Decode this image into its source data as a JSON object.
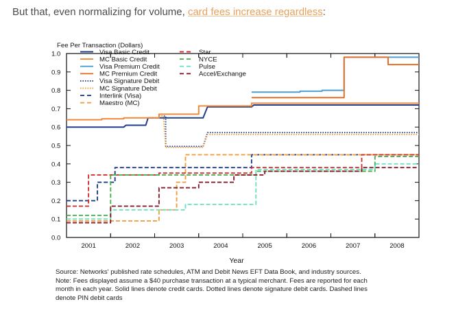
{
  "intro": {
    "prefix": "But that, even normalizing for volume, ",
    "link_text": "card fees increase regardless",
    "suffix": ":"
  },
  "colors": {
    "Visa Basic Credit": "#1f3d8a",
    "MC Basic Credit": "#f08a3a",
    "Visa Premium Credit": "#4a9fd4",
    "MC Premium Credit": "#e8702a",
    "Visa Signature Debit": "#1f3d8a",
    "MC Signature Debit": "#f0a040",
    "Interlink (Visa)": "#1f3d8a",
    "Maestro (MC)": "#f0a040",
    "Star": "#d03030",
    "NYCE": "#4caf50",
    "Pulse": "#6fe0c0",
    "Accel/Exchange": "#8b1a2a"
  },
  "chart_data": {
    "type": "line",
    "title": "Fee Per Transaction (Dollars)",
    "xlabel": "Year",
    "ylabel": "",
    "xlim": [
      2000.5,
      2008.5
    ],
    "ylim": [
      0,
      1.0
    ],
    "yticks": [
      "0.0",
      "0.1",
      "0.2",
      "0.3",
      "0.4",
      "0.5",
      "0.6",
      "0.7",
      "0.8",
      "0.9",
      "1.0"
    ],
    "xticks": [
      "2001",
      "2002",
      "2003",
      "2004",
      "2005",
      "2006",
      "2007",
      "2008"
    ],
    "grid": false,
    "legend_placement": "top-left",
    "series": [
      {
        "name": "Visa Basic Credit",
        "style": "solid",
        "points": [
          [
            2000.5,
            0.6
          ],
          [
            2001.8,
            0.6
          ],
          [
            2001.85,
            0.61
          ],
          [
            2002.3,
            0.61
          ],
          [
            2002.35,
            0.65
          ],
          [
            2003.6,
            0.65
          ],
          [
            2003.7,
            0.71
          ],
          [
            2004.7,
            0.71
          ],
          [
            2004.75,
            0.72
          ],
          [
            2008.5,
            0.72
          ]
        ]
      },
      {
        "name": "MC Basic Credit",
        "style": "solid",
        "points": [
          [
            2000.5,
            0.64
          ],
          [
            2001.3,
            0.64
          ],
          [
            2001.3,
            0.645
          ],
          [
            2001.8,
            0.645
          ],
          [
            2001.8,
            0.65
          ],
          [
            2002.6,
            0.65
          ],
          [
            2002.6,
            0.67
          ],
          [
            2003.5,
            0.67
          ],
          [
            2003.5,
            0.715
          ],
          [
            2004.7,
            0.715
          ],
          [
            2004.7,
            0.73
          ],
          [
            2006.8,
            0.73
          ],
          [
            2006.8,
            0.73
          ],
          [
            2008.5,
            0.73
          ]
        ]
      },
      {
        "name": "Visa Premium Credit",
        "style": "solid",
        "points": [
          [
            2004.7,
            0.79
          ],
          [
            2005.8,
            0.79
          ],
          [
            2005.8,
            0.795
          ],
          [
            2006.3,
            0.795
          ],
          [
            2006.3,
            0.8
          ],
          [
            2006.8,
            0.8
          ],
          [
            2006.8,
            0.98
          ],
          [
            2008.5,
            0.98
          ]
        ]
      },
      {
        "name": "MC Premium Credit",
        "style": "solid",
        "points": [
          [
            2004.7,
            0.76
          ],
          [
            2006.8,
            0.76
          ],
          [
            2006.8,
            0.98
          ],
          [
            2007.8,
            0.98
          ],
          [
            2007.8,
            0.94
          ],
          [
            2008.5,
            0.94
          ]
        ]
      },
      {
        "name": "Visa Signature Debit",
        "style": "dotted",
        "points": [
          [
            2002.6,
            0.66
          ],
          [
            2002.75,
            0.66
          ],
          [
            2002.75,
            0.495
          ],
          [
            2003.6,
            0.495
          ],
          [
            2003.7,
            0.57
          ],
          [
            2008.5,
            0.57
          ]
        ]
      },
      {
        "name": "MC Signature Debit",
        "style": "dotted",
        "points": [
          [
            2002.6,
            0.66
          ],
          [
            2002.7,
            0.66
          ],
          [
            2002.75,
            0.49
          ],
          [
            2003.3,
            0.49
          ],
          [
            2003.35,
            0.49
          ],
          [
            2003.6,
            0.49
          ],
          [
            2003.7,
            0.56
          ],
          [
            2005.8,
            0.56
          ],
          [
            2005.8,
            0.56
          ],
          [
            2008.5,
            0.56
          ]
        ]
      },
      {
        "name": "Interlink (Visa)",
        "style": "dashed",
        "points": [
          [
            2000.5,
            0.2
          ],
          [
            2001.2,
            0.2
          ],
          [
            2001.2,
            0.3
          ],
          [
            2001.6,
            0.3
          ],
          [
            2001.6,
            0.38
          ],
          [
            2003.5,
            0.38
          ],
          [
            2003.5,
            0.38
          ],
          [
            2004.7,
            0.38
          ],
          [
            2004.7,
            0.45
          ],
          [
            2008.5,
            0.45
          ]
        ]
      },
      {
        "name": "Maestro (MC)",
        "style": "dashed",
        "points": [
          [
            2000.5,
            0.09
          ],
          [
            2002.6,
            0.09
          ],
          [
            2002.6,
            0.15
          ],
          [
            2003.0,
            0.15
          ],
          [
            2003.0,
            0.3
          ],
          [
            2003.2,
            0.3
          ],
          [
            2003.2,
            0.45
          ],
          [
            2008.5,
            0.45
          ]
        ]
      },
      {
        "name": "Star",
        "style": "dashed",
        "points": [
          [
            2000.5,
            0.17
          ],
          [
            2001.0,
            0.17
          ],
          [
            2001.0,
            0.34
          ],
          [
            2001.9,
            0.34
          ],
          [
            2001.9,
            0.34
          ],
          [
            2002.6,
            0.34
          ],
          [
            2002.6,
            0.35
          ],
          [
            2004.7,
            0.35
          ],
          [
            2004.7,
            0.38
          ],
          [
            2007.2,
            0.38
          ],
          [
            2007.2,
            0.45
          ],
          [
            2008.5,
            0.45
          ]
        ]
      },
      {
        "name": "NYCE",
        "style": "dashed",
        "points": [
          [
            2000.5,
            0.12
          ],
          [
            2001.5,
            0.12
          ],
          [
            2001.5,
            0.34
          ],
          [
            2002.6,
            0.34
          ],
          [
            2002.6,
            0.34
          ],
          [
            2004.8,
            0.34
          ],
          [
            2004.8,
            0.36
          ],
          [
            2007.5,
            0.36
          ],
          [
            2007.5,
            0.44
          ],
          [
            2008.5,
            0.44
          ]
        ]
      },
      {
        "name": "Pulse",
        "style": "dashed",
        "points": [
          [
            2000.5,
            0.1
          ],
          [
            2001.5,
            0.1
          ],
          [
            2001.5,
            0.15
          ],
          [
            2003.2,
            0.15
          ],
          [
            2003.2,
            0.18
          ],
          [
            2004.8,
            0.18
          ],
          [
            2004.8,
            0.37
          ],
          [
            2007.5,
            0.37
          ],
          [
            2007.5,
            0.4
          ],
          [
            2008.5,
            0.4
          ]
        ]
      },
      {
        "name": "Accel/Exchange",
        "style": "dashed",
        "points": [
          [
            2000.5,
            0.08
          ],
          [
            2001.5,
            0.08
          ],
          [
            2001.5,
            0.17
          ],
          [
            2002.6,
            0.17
          ],
          [
            2002.6,
            0.27
          ],
          [
            2003.5,
            0.27
          ],
          [
            2003.5,
            0.3
          ],
          [
            2004.3,
            0.3
          ],
          [
            2004.3,
            0.34
          ],
          [
            2005.0,
            0.34
          ],
          [
            2005.0,
            0.36
          ],
          [
            2007.2,
            0.36
          ],
          [
            2007.2,
            0.38
          ],
          [
            2008.5,
            0.38
          ]
        ]
      }
    ]
  },
  "source_lines": [
    "Source: Networks' published rate schedules, ATM and Debit News EFT Data Book, and industry sources.",
    "Note: Fees displayed assume a $40 purchase transaction at a typical merchant. Fees are reported for each",
    "month in each year. Solid lines denote credit cards. Dotted lines denote signature debit cards. Dashed lines",
    "denote PIN debit cards"
  ]
}
